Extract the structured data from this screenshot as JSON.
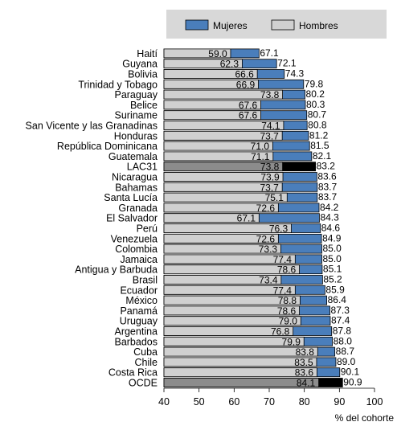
{
  "chart_data": {
    "type": "bar",
    "orientation": "horizontal",
    "stacked": "overlay",
    "xlabel": "% del cohorte",
    "xlim": [
      40,
      100
    ],
    "xticks": [
      40,
      50,
      60,
      70,
      80,
      90,
      100
    ],
    "grid": false,
    "legend": {
      "position": "top",
      "entries": [
        "Mujeres",
        "Hombres"
      ]
    },
    "colors": {
      "mujeres": "#4a7ebb",
      "hombres": "#d0d0d0",
      "highlight_mujeres": "#000000",
      "highlight_hombres": "#8c8c8c",
      "outline": "#000000"
    },
    "highlight": [
      "LAC31",
      "OCDE"
    ],
    "categories": [
      "Haití",
      "Guyana",
      "Bolivia",
      "Trinidad y Tobago",
      "Paraguay",
      "Belice",
      "Suriname",
      "San Vicente y las Granadinas",
      "Honduras",
      "República Dominicana",
      "Guatemala",
      "LAC31",
      "Nicaragua",
      "Bahamas",
      "Santa Lucía",
      "Granada",
      "El Salvador",
      "Perú",
      "Venezuela",
      "Colombia",
      "Jamaica",
      "Antigua y Barbuda",
      "Brasil",
      "Ecuador",
      "México",
      "Panamá",
      "Uruguay",
      "Argentina",
      "Barbados",
      "Cuba",
      "Chile",
      "Costa Rica",
      "OCDE"
    ],
    "series": [
      {
        "name": "Hombres",
        "values": [
          59.0,
          62.3,
          66.6,
          66.9,
          73.8,
          67.6,
          67.6,
          74.1,
          73.7,
          71.0,
          71.1,
          73.8,
          73.9,
          73.7,
          75.1,
          72.6,
          67.1,
          76.3,
          72.6,
          73.3,
          77.4,
          78.6,
          73.4,
          77.4,
          78.8,
          78.6,
          79.0,
          76.8,
          79.9,
          83.8,
          83.5,
          83.6,
          84.1
        ]
      },
      {
        "name": "Mujeres",
        "values": [
          67.1,
          72.1,
          74.3,
          79.8,
          80.2,
          80.3,
          80.7,
          80.8,
          81.2,
          81.5,
          82.1,
          83.2,
          83.6,
          83.7,
          83.7,
          84.2,
          84.3,
          84.6,
          84.9,
          85.0,
          85.0,
          85.1,
          85.2,
          85.9,
          86.4,
          87.3,
          87.4,
          87.8,
          88.0,
          88.7,
          89.0,
          90.1,
          90.9
        ]
      }
    ]
  }
}
